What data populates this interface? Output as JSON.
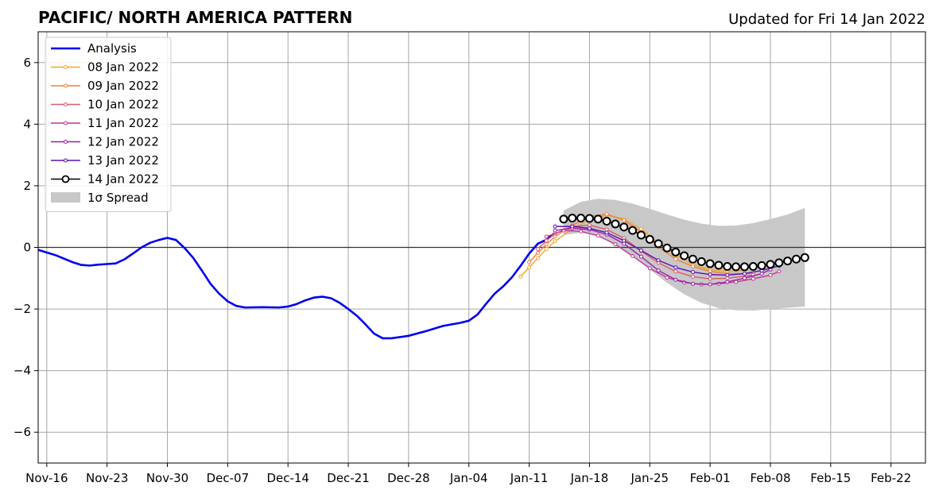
{
  "chart_data": {
    "type": "line",
    "title": "PACIFIC/ NORTH AMERICA PATTERN",
    "subtitle": "Updated for Fri 14 Jan 2022",
    "xlabel": "",
    "ylabel": "",
    "x_axis": {
      "type": "date",
      "min": "2021-11-15",
      "max": "2022-02-26"
    },
    "ylim": [
      -7,
      7
    ],
    "yticks": [
      -6,
      -4,
      -2,
      0,
      2,
      4,
      6
    ],
    "xticks": [
      {
        "date": "2021-11-16",
        "label": "Nov-16"
      },
      {
        "date": "2021-11-23",
        "label": "Nov-23"
      },
      {
        "date": "2021-11-30",
        "label": "Nov-30"
      },
      {
        "date": "2021-12-07",
        "label": "Dec-07"
      },
      {
        "date": "2021-12-14",
        "label": "Dec-14"
      },
      {
        "date": "2021-12-21",
        "label": "Dec-21"
      },
      {
        "date": "2021-12-28",
        "label": "Dec-28"
      },
      {
        "date": "2022-01-04",
        "label": "Jan-04"
      },
      {
        "date": "2022-01-11",
        "label": "Jan-11"
      },
      {
        "date": "2022-01-18",
        "label": "Jan-18"
      },
      {
        "date": "2022-01-25",
        "label": "Jan-25"
      },
      {
        "date": "2022-02-01",
        "label": "Feb-01"
      },
      {
        "date": "2022-02-08",
        "label": "Feb-08"
      },
      {
        "date": "2022-02-15",
        "label": "Feb-15"
      },
      {
        "date": "2022-02-22",
        "label": "Feb-22"
      }
    ],
    "grid": true,
    "legend_placement": "top-left",
    "spread": {
      "name": "1σ Spread",
      "color": "#c8c8c8",
      "points": [
        {
          "date": "2022-01-15",
          "upper": 1.2,
          "lower": 0.4
        },
        {
          "date": "2022-01-17",
          "upper": 1.48,
          "lower": 0.48
        },
        {
          "date": "2022-01-19",
          "upper": 1.58,
          "lower": 0.38
        },
        {
          "date": "2022-01-21",
          "upper": 1.54,
          "lower": 0.12
        },
        {
          "date": "2022-01-23",
          "upper": 1.42,
          "lower": -0.26
        },
        {
          "date": "2022-01-25",
          "upper": 1.25,
          "lower": -0.72
        },
        {
          "date": "2022-01-27",
          "upper": 1.07,
          "lower": -1.15
        },
        {
          "date": "2022-01-29",
          "upper": 0.9,
          "lower": -1.52
        },
        {
          "date": "2022-01-31",
          "upper": 0.77,
          "lower": -1.8
        },
        {
          "date": "2022-02-02",
          "upper": 0.7,
          "lower": -1.97
        },
        {
          "date": "2022-02-04",
          "upper": 0.71,
          "lower": -2.04
        },
        {
          "date": "2022-02-06",
          "upper": 0.79,
          "lower": -2.05
        },
        {
          "date": "2022-02-08",
          "upper": 0.92,
          "lower": -2.0
        },
        {
          "date": "2022-02-10",
          "upper": 1.07,
          "lower": -1.96
        },
        {
          "date": "2022-02-12",
          "upper": 1.28,
          "lower": -1.92
        }
      ]
    },
    "series": [
      {
        "name": "Analysis",
        "color": "#0000ee",
        "marker": "none",
        "points": [
          {
            "date": "2021-11-15",
            "y": -0.08
          },
          {
            "date": "2021-11-17",
            "y": -0.25
          },
          {
            "date": "2021-11-19",
            "y": -0.48
          },
          {
            "date": "2021-11-20",
            "y": -0.57
          },
          {
            "date": "2021-11-21",
            "y": -0.59
          },
          {
            "date": "2021-11-22",
            "y": -0.56
          },
          {
            "date": "2021-11-24",
            "y": -0.52
          },
          {
            "date": "2021-11-25",
            "y": -0.39
          },
          {
            "date": "2021-11-26",
            "y": -0.2
          },
          {
            "date": "2021-11-27",
            "y": 0.0
          },
          {
            "date": "2021-11-28",
            "y": 0.15
          },
          {
            "date": "2021-11-29",
            "y": 0.24
          },
          {
            "date": "2021-11-30",
            "y": 0.31
          },
          {
            "date": "2021-12-01",
            "y": 0.24
          },
          {
            "date": "2021-12-02",
            "y": -0.02
          },
          {
            "date": "2021-12-03",
            "y": -0.34
          },
          {
            "date": "2021-12-04",
            "y": -0.75
          },
          {
            "date": "2021-12-05",
            "y": -1.18
          },
          {
            "date": "2021-12-06",
            "y": -1.5
          },
          {
            "date": "2021-12-07",
            "y": -1.75
          },
          {
            "date": "2021-12-08",
            "y": -1.9
          },
          {
            "date": "2021-12-09",
            "y": -1.95
          },
          {
            "date": "2021-12-11",
            "y": -1.94
          },
          {
            "date": "2021-12-13",
            "y": -1.95
          },
          {
            "date": "2021-12-14",
            "y": -1.92
          },
          {
            "date": "2021-12-15",
            "y": -1.84
          },
          {
            "date": "2021-12-16",
            "y": -1.72
          },
          {
            "date": "2021-12-17",
            "y": -1.63
          },
          {
            "date": "2021-12-18",
            "y": -1.6
          },
          {
            "date": "2021-12-19",
            "y": -1.65
          },
          {
            "date": "2021-12-20",
            "y": -1.8
          },
          {
            "date": "2021-12-21",
            "y": -2.0
          },
          {
            "date": "2021-12-22",
            "y": -2.22
          },
          {
            "date": "2021-12-23",
            "y": -2.5
          },
          {
            "date": "2021-12-24",
            "y": -2.8
          },
          {
            "date": "2021-12-25",
            "y": -2.95
          },
          {
            "date": "2021-12-26",
            "y": -2.95
          },
          {
            "date": "2021-12-28",
            "y": -2.87
          },
          {
            "date": "2021-12-30",
            "y": -2.72
          },
          {
            "date": "2022-01-01",
            "y": -2.55
          },
          {
            "date": "2022-01-03",
            "y": -2.45
          },
          {
            "date": "2022-01-04",
            "y": -2.38
          },
          {
            "date": "2022-01-05",
            "y": -2.18
          },
          {
            "date": "2022-01-06",
            "y": -1.83
          },
          {
            "date": "2022-01-07",
            "y": -1.5
          },
          {
            "date": "2022-01-08",
            "y": -1.26
          },
          {
            "date": "2022-01-09",
            "y": -0.97
          },
          {
            "date": "2022-01-10",
            "y": -0.6
          },
          {
            "date": "2022-01-11",
            "y": -0.2
          },
          {
            "date": "2022-01-12",
            "y": 0.12
          },
          {
            "date": "2022-01-13",
            "y": 0.25
          },
          {
            "date": "2022-01-14",
            "y": 0.48
          }
        ]
      },
      {
        "name": "08 Jan 2022",
        "color": "#f5a623",
        "marker": "small",
        "points": [
          {
            "date": "2022-01-10",
            "y": -0.95
          },
          {
            "date": "2022-01-11",
            "y": -0.65
          },
          {
            "date": "2022-01-12",
            "y": -0.35
          },
          {
            "date": "2022-01-13",
            "y": -0.05
          },
          {
            "date": "2022-01-14",
            "y": 0.2
          },
          {
            "date": "2022-01-16",
            "y": 0.6
          },
          {
            "date": "2022-01-18",
            "y": 0.9
          },
          {
            "date": "2022-01-20",
            "y": 1.05
          },
          {
            "date": "2022-01-22",
            "y": 0.92
          },
          {
            "date": "2022-01-24",
            "y": 0.6
          },
          {
            "date": "2022-01-26",
            "y": 0.15
          },
          {
            "date": "2022-01-28",
            "y": -0.25
          },
          {
            "date": "2022-01-30",
            "y": -0.55
          },
          {
            "date": "2022-02-01",
            "y": -0.72
          },
          {
            "date": "2022-02-03",
            "y": -0.78
          },
          {
            "date": "2022-02-05",
            "y": -0.75
          }
        ]
      },
      {
        "name": "09 Jan 2022",
        "color": "#f07f3c",
        "marker": "small",
        "points": [
          {
            "date": "2022-01-11",
            "y": -0.48
          },
          {
            "date": "2022-01-12",
            "y": -0.18
          },
          {
            "date": "2022-01-13",
            "y": 0.1
          },
          {
            "date": "2022-01-14",
            "y": 0.35
          },
          {
            "date": "2022-01-16",
            "y": 0.72
          },
          {
            "date": "2022-01-18",
            "y": 1.0
          },
          {
            "date": "2022-01-20",
            "y": 1.08
          },
          {
            "date": "2022-01-22",
            "y": 0.88
          },
          {
            "date": "2022-01-24",
            "y": 0.5
          },
          {
            "date": "2022-01-26",
            "y": 0.02
          },
          {
            "date": "2022-01-28",
            "y": -0.38
          },
          {
            "date": "2022-01-30",
            "y": -0.62
          },
          {
            "date": "2022-02-01",
            "y": -0.78
          },
          {
            "date": "2022-02-03",
            "y": -0.85
          },
          {
            "date": "2022-02-06",
            "y": -0.85
          }
        ]
      },
      {
        "name": "10 Jan 2022",
        "color": "#e0566a",
        "marker": "small",
        "points": [
          {
            "date": "2022-01-12",
            "y": -0.05
          },
          {
            "date": "2022-01-13",
            "y": 0.22
          },
          {
            "date": "2022-01-14",
            "y": 0.45
          },
          {
            "date": "2022-01-16",
            "y": 0.68
          },
          {
            "date": "2022-01-18",
            "y": 0.72
          },
          {
            "date": "2022-01-20",
            "y": 0.58
          },
          {
            "date": "2022-01-22",
            "y": 0.3
          },
          {
            "date": "2022-01-24",
            "y": -0.12
          },
          {
            "date": "2022-01-26",
            "y": -0.5
          },
          {
            "date": "2022-01-28",
            "y": -0.78
          },
          {
            "date": "2022-01-30",
            "y": -0.95
          },
          {
            "date": "2022-02-01",
            "y": -1.02
          },
          {
            "date": "2022-02-03",
            "y": -1.0
          },
          {
            "date": "2022-02-06",
            "y": -0.9
          }
        ]
      },
      {
        "name": "11 Jan 2022",
        "color": "#c2369a",
        "marker": "small",
        "points": [
          {
            "date": "2022-01-13",
            "y": 0.35
          },
          {
            "date": "2022-01-15",
            "y": 0.55
          },
          {
            "date": "2022-01-17",
            "y": 0.52
          },
          {
            "date": "2022-01-19",
            "y": 0.38
          },
          {
            "date": "2022-01-21",
            "y": 0.1
          },
          {
            "date": "2022-01-23",
            "y": -0.28
          },
          {
            "date": "2022-01-25",
            "y": -0.68
          },
          {
            "date": "2022-01-27",
            "y": -0.98
          },
          {
            "date": "2022-01-29",
            "y": -1.14
          },
          {
            "date": "2022-01-31",
            "y": -1.2
          },
          {
            "date": "2022-02-02",
            "y": -1.18
          },
          {
            "date": "2022-02-04",
            "y": -1.12
          },
          {
            "date": "2022-02-06",
            "y": -1.02
          },
          {
            "date": "2022-02-08",
            "y": -0.9
          },
          {
            "date": "2022-02-09",
            "y": -0.78
          }
        ]
      },
      {
        "name": "12 Jan 2022",
        "color": "#9a1fa8",
        "marker": "small",
        "points": [
          {
            "date": "2022-01-14",
            "y": 0.55
          },
          {
            "date": "2022-01-16",
            "y": 0.62
          },
          {
            "date": "2022-01-18",
            "y": 0.58
          },
          {
            "date": "2022-01-20",
            "y": 0.42
          },
          {
            "date": "2022-01-22",
            "y": 0.12
          },
          {
            "date": "2022-01-24",
            "y": -0.3
          },
          {
            "date": "2022-01-26",
            "y": -0.75
          },
          {
            "date": "2022-01-28",
            "y": -1.05
          },
          {
            "date": "2022-01-30",
            "y": -1.18
          },
          {
            "date": "2022-02-01",
            "y": -1.2
          },
          {
            "date": "2022-02-03",
            "y": -1.12
          },
          {
            "date": "2022-02-05",
            "y": -1.0
          },
          {
            "date": "2022-02-07",
            "y": -0.85
          },
          {
            "date": "2022-02-08",
            "y": -0.72
          }
        ]
      },
      {
        "name": "13 Jan 2022",
        "color": "#5a0fb0",
        "marker": "small",
        "points": [
          {
            "date": "2022-01-14",
            "y": 0.68
          },
          {
            "date": "2022-01-16",
            "y": 0.68
          },
          {
            "date": "2022-01-18",
            "y": 0.62
          },
          {
            "date": "2022-01-20",
            "y": 0.48
          },
          {
            "date": "2022-01-22",
            "y": 0.22
          },
          {
            "date": "2022-01-24",
            "y": -0.1
          },
          {
            "date": "2022-01-26",
            "y": -0.42
          },
          {
            "date": "2022-01-28",
            "y": -0.65
          },
          {
            "date": "2022-01-30",
            "y": -0.8
          },
          {
            "date": "2022-02-01",
            "y": -0.88
          },
          {
            "date": "2022-02-03",
            "y": -0.9
          },
          {
            "date": "2022-02-05",
            "y": -0.85
          },
          {
            "date": "2022-02-07",
            "y": -0.75
          },
          {
            "date": "2022-02-09",
            "y": -0.6
          }
        ]
      },
      {
        "name": "14 Jan 2022",
        "color": "#000000",
        "marker": "large",
        "points": [
          {
            "date": "2022-01-15",
            "y": 0.92
          },
          {
            "date": "2022-01-16",
            "y": 0.95
          },
          {
            "date": "2022-01-17",
            "y": 0.95
          },
          {
            "date": "2022-01-18",
            "y": 0.94
          },
          {
            "date": "2022-01-19",
            "y": 0.92
          },
          {
            "date": "2022-01-20",
            "y": 0.85
          },
          {
            "date": "2022-01-21",
            "y": 0.76
          },
          {
            "date": "2022-01-22",
            "y": 0.66
          },
          {
            "date": "2022-01-23",
            "y": 0.55
          },
          {
            "date": "2022-01-24",
            "y": 0.4
          },
          {
            "date": "2022-01-25",
            "y": 0.26
          },
          {
            "date": "2022-01-26",
            "y": 0.12
          },
          {
            "date": "2022-01-27",
            "y": -0.02
          },
          {
            "date": "2022-01-28",
            "y": -0.15
          },
          {
            "date": "2022-01-29",
            "y": -0.27
          },
          {
            "date": "2022-01-30",
            "y": -0.38
          },
          {
            "date": "2022-01-31",
            "y": -0.46
          },
          {
            "date": "2022-02-01",
            "y": -0.53
          },
          {
            "date": "2022-02-02",
            "y": -0.58
          },
          {
            "date": "2022-02-03",
            "y": -0.62
          },
          {
            "date": "2022-02-04",
            "y": -0.63
          },
          {
            "date": "2022-02-05",
            "y": -0.63
          },
          {
            "date": "2022-02-06",
            "y": -0.62
          },
          {
            "date": "2022-02-07",
            "y": -0.59
          },
          {
            "date": "2022-02-08",
            "y": -0.55
          },
          {
            "date": "2022-02-09",
            "y": -0.5
          },
          {
            "date": "2022-02-10",
            "y": -0.44
          },
          {
            "date": "2022-02-11",
            "y": -0.38
          },
          {
            "date": "2022-02-12",
            "y": -0.33
          }
        ]
      }
    ]
  }
}
